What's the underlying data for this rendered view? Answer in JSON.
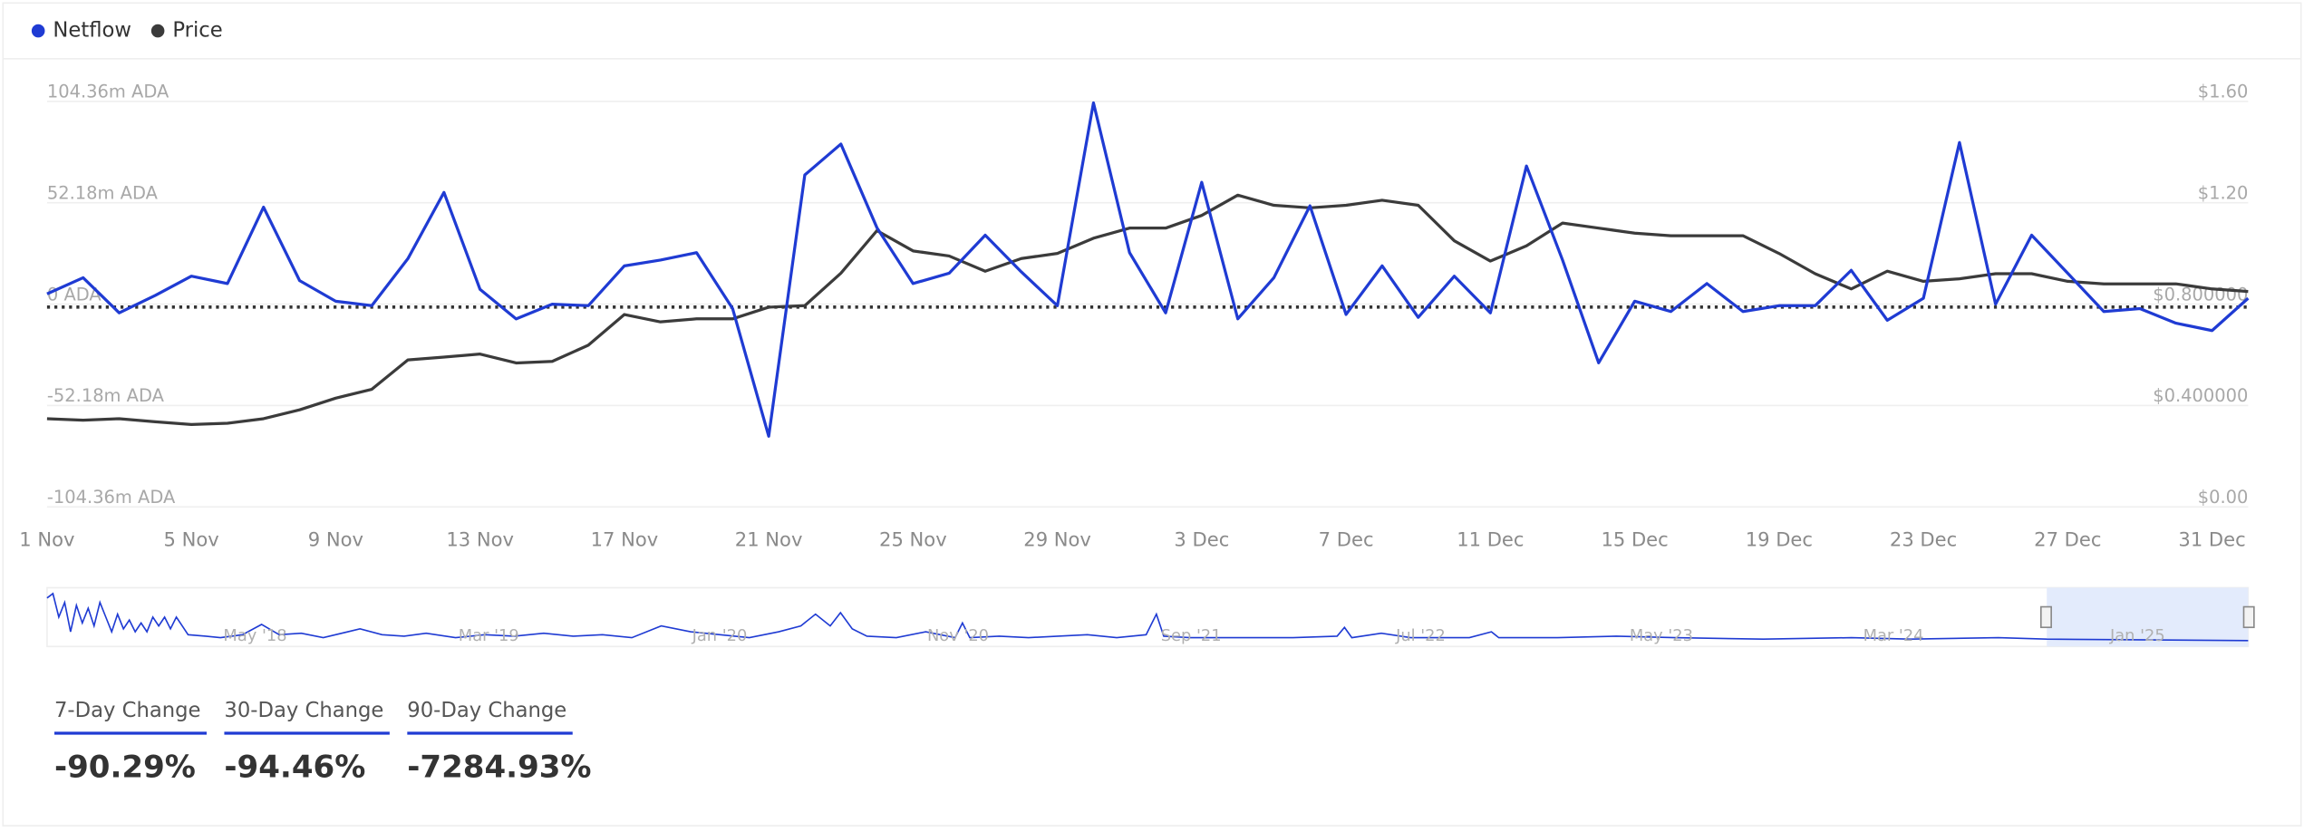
{
  "chart_data": {
    "type": "line",
    "categories": [
      "1 Nov",
      null,
      null,
      null,
      "5 Nov",
      null,
      null,
      null,
      "9 Nov",
      null,
      null,
      null,
      "13 Nov",
      null,
      null,
      null,
      "17 Nov",
      null,
      null,
      null,
      "21 Nov",
      null,
      null,
      null,
      "25 Nov",
      null,
      null,
      null,
      "29 Nov",
      null,
      null,
      null,
      "3 Dec",
      null,
      null,
      null,
      "7 Dec",
      null,
      null,
      null,
      "11 Dec",
      null,
      null,
      null,
      "15 Dec",
      null,
      null,
      null,
      "19 Dec",
      null,
      null,
      null,
      "23 Dec",
      null,
      null,
      null,
      "27 Dec",
      null,
      null,
      null,
      "31 Dec",
      null
    ],
    "series": [
      {
        "name": "Netflow",
        "color": "#1f3bd3",
        "values": [
          5.3,
          13.6,
          -4.5,
          4.5,
          14.4,
          10.6,
          49.9,
          12.1,
          1.5,
          -0.8,
          23.4,
          57.5,
          7.6,
          -7.6,
          0,
          -0.8,
          19.7,
          22.7,
          26.5,
          -2.3,
          -68.0,
          66.5,
          82.4,
          39.3,
          10.6,
          15.9,
          35.5,
          16.6,
          -0.8,
          103.6,
          26.5,
          -4.5,
          62.7,
          -7.6,
          13.6,
          50.6,
          -5.3,
          19.7,
          -6.8,
          14.4,
          -4.5,
          71.1,
          22.7,
          -30.2,
          1.5,
          -3.8,
          10.6,
          -3.8,
          -0.8,
          -0.8,
          17.4,
          -8.3,
          3.0,
          83.2,
          0,
          35.5,
          15.9,
          -3.8,
          -2.3,
          -9.8,
          -13.6,
          3.0
        ]
      },
      {
        "name": "Price",
        "color": "#3b3b3b",
        "axis": "y2",
        "values": [
          0.348,
          0.342,
          0.348,
          0.336,
          0.325,
          0.33,
          0.348,
          0.383,
          0.429,
          0.464,
          0.58,
          0.591,
          0.603,
          0.568,
          0.574,
          0.638,
          0.759,
          0.73,
          0.742,
          0.742,
          0.788,
          0.794,
          0.922,
          1.09,
          1.01,
          0.99,
          0.93,
          0.98,
          1.0,
          1.06,
          1.1,
          1.1,
          1.15,
          1.23,
          1.19,
          1.18,
          1.19,
          1.21,
          1.19,
          1.05,
          0.97,
          1.03,
          1.12,
          1.1,
          1.08,
          1.07,
          1.07,
          1.07,
          1.0,
          0.92,
          0.86,
          0.93,
          0.89,
          0.9,
          0.92,
          0.92,
          0.89,
          0.88,
          0.88,
          0.88,
          0.86,
          0.85
        ]
      }
    ],
    "ylim": [
      -104.36,
      104.36
    ],
    "yticks": [
      {
        "value": -104.36,
        "label": "-104.36m ADA"
      },
      {
        "value": -52.18,
        "label": "-52.18m ADA"
      },
      {
        "value": 0,
        "label": "0 ADA"
      },
      {
        "value": 52.18,
        "label": "52.18m ADA"
      },
      {
        "value": 104.36,
        "label": "104.36m ADA"
      }
    ],
    "y2lim": [
      0,
      1.6
    ],
    "y2ticks": [
      {
        "value": 0,
        "label": "$0.00"
      },
      {
        "value": 0.4,
        "label": "$0.400000"
      },
      {
        "value": 0.8,
        "label": "$0.800000"
      },
      {
        "value": 1.2,
        "label": "$1.20"
      },
      {
        "value": 1.6,
        "label": "$1.60"
      }
    ],
    "grid": true,
    "legend": "top-left"
  },
  "navigator": {
    "labels": [
      "May '18",
      "Mar '19",
      "Jan '20",
      "Nov '20",
      "Sep '21",
      "Jul '22",
      "May '23",
      "Mar '24",
      "Jan '25"
    ]
  },
  "stats": [
    {
      "label": "7-Day Change",
      "value": "-90.29%"
    },
    {
      "label": "30-Day Change",
      "value": "-94.46%"
    },
    {
      "label": "90-Day Change",
      "value": "-7284.93%"
    }
  ]
}
